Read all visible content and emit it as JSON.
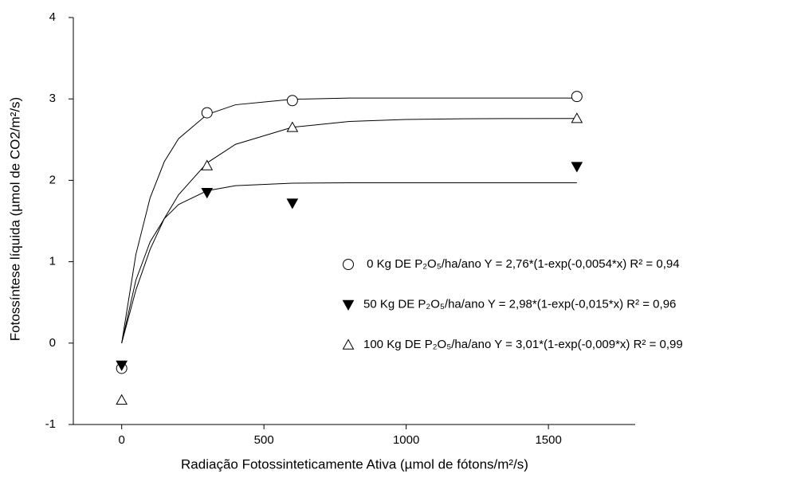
{
  "chart_data": {
    "type": "scatter",
    "x_label": "Radiação Fotossinteticamente Ativa (µmol de fótons/m²/s)",
    "y_label": "Fotossíntese líquida (µmol de CO2/m²/s)",
    "xlim": [
      -170,
      1805
    ],
    "ylim": [
      -1,
      4
    ],
    "xticks": [
      0,
      500,
      1000,
      1500
    ],
    "yticks": [
      -1,
      0,
      1,
      2,
      3,
      4
    ],
    "color": "#000000",
    "series": [
      {
        "name": " 0 Kg DE P₂O₅/ha/ano Y = 2,76*(1-exp(-0,0054*x) R² = 0,94",
        "marker": "circle-open",
        "x": [
          0,
          300,
          600,
          1600
        ],
        "values": [
          -0.31,
          2.83,
          2.98,
          3.03
        ]
      },
      {
        "name": "50 Kg DE P₂O₅/ha/ano Y = 2,98*(1-exp(-0,015*x) R² = 0,96",
        "marker": "triangle-down-filled",
        "x": [
          0,
          300,
          600,
          1600
        ],
        "values": [
          -0.27,
          1.85,
          1.72,
          2.17
        ]
      },
      {
        "name": "100 Kg DE P₂O₅/ha/ano Y = 3,01*(1-exp(-0,009*x) R² = 0,99",
        "marker": "triangle-up-open",
        "x": [
          0,
          300,
          600,
          1600
        ],
        "values": [
          -0.7,
          2.18,
          2.65,
          2.76
        ]
      }
    ],
    "curves": [
      {
        "x": [
          0,
          50,
          100,
          150,
          200,
          300,
          400,
          600,
          800,
          1000,
          1200,
          1400,
          1600
        ],
        "values": [
          0,
          1.091,
          1.786,
          2.23,
          2.512,
          2.808,
          2.928,
          2.996,
          3.01,
          3.01,
          3.01,
          3.01,
          3.01
        ]
      },
      {
        "x": [
          0,
          50,
          100,
          150,
          200,
          300,
          400,
          600,
          800,
          1000,
          1200,
          1400,
          1600
        ],
        "values": [
          0,
          0.653,
          1.152,
          1.532,
          1.823,
          2.214,
          2.442,
          2.652,
          2.723,
          2.748,
          2.756,
          2.759,
          2.76
        ]
      },
      {
        "x": [
          0,
          50,
          100,
          150,
          200,
          300,
          400,
          600,
          800,
          1000,
          1200,
          1400,
          1600
        ],
        "values": [
          0,
          0.775,
          1.245,
          1.53,
          1.703,
          1.872,
          1.934,
          1.965,
          1.97,
          1.97,
          1.97,
          1.97,
          1.97
        ]
      }
    ]
  }
}
